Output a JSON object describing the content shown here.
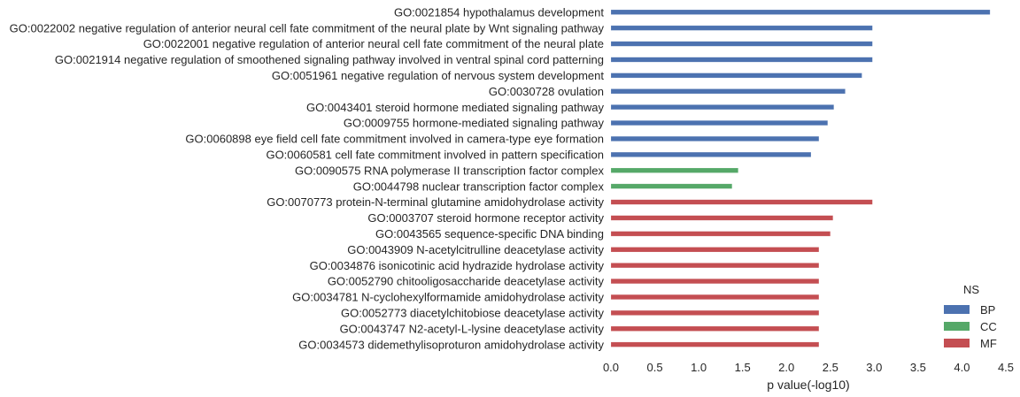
{
  "chart_data": {
    "type": "bar",
    "orientation": "horizontal",
    "xlabel": "p value(-log10)",
    "ylabel": "",
    "xlim": [
      0,
      4.5
    ],
    "xticks": [
      "0.0",
      "0.5",
      "1.0",
      "1.5",
      "2.0",
      "2.5",
      "3.0",
      "3.5",
      "4.0",
      "4.5"
    ],
    "grid": false,
    "legend": {
      "title": "NS",
      "placement": "lower-right",
      "entries": [
        {
          "name": "BP",
          "color": "#4c72b0"
        },
        {
          "name": "CC",
          "color": "#55a868"
        },
        {
          "name": "MF",
          "color": "#c44e52"
        }
      ]
    },
    "categories": [
      "GO:0021854 hypothalamus development",
      "GO:0022002 negative regulation of anterior neural cell fate commitment of the neural plate by Wnt signaling pathway",
      "GO:0022001 negative regulation of anterior neural cell fate commitment of the neural plate",
      "GO:0021914 negative regulation of smoothened signaling pathway involved in ventral spinal cord patterning",
      "GO:0051961 negative regulation of nervous system development",
      "GO:0030728 ovulation",
      "GO:0043401 steroid hormone mediated signaling pathway",
      "GO:0009755 hormone-mediated signaling pathway",
      "GO:0060898 eye field cell fate commitment involved in camera-type eye formation",
      "GO:0060581 cell fate commitment involved in pattern specification",
      "GO:0090575 RNA polymerase II transcription factor complex",
      "GO:0044798 nuclear transcription factor complex",
      "GO:0070773 protein-N-terminal glutamine amidohydrolase activity",
      "GO:0003707 steroid hormone receptor activity",
      "GO:0043565 sequence-specific DNA binding",
      "GO:0043909 N-acetylcitrulline deacetylase activity",
      "GO:0034876 isonicotinic acid hydrazide hydrolase activity",
      "GO:0052790 chitooligosaccharide deacetylase activity",
      "GO:0034781 N-cyclohexylformamide amidohydrolase activity",
      "GO:0052773 diacetylchitobiose deacetylase activity",
      "GO:0043747 N2-acetyl-L-lysine deacetylase activity",
      "GO:0034573 didemethylisoproturon amidohydrolase activity"
    ],
    "series": [
      {
        "name": "BP",
        "color": "#4c72b0",
        "values": [
          4.32,
          2.98,
          2.98,
          2.98,
          2.86,
          2.67,
          2.54,
          2.47,
          2.37,
          2.28,
          null,
          null,
          null,
          null,
          null,
          null,
          null,
          null,
          null,
          null,
          null,
          null
        ]
      },
      {
        "name": "CC",
        "color": "#55a868",
        "values": [
          null,
          null,
          null,
          null,
          null,
          null,
          null,
          null,
          null,
          null,
          1.45,
          1.38,
          null,
          null,
          null,
          null,
          null,
          null,
          null,
          null,
          null,
          null
        ]
      },
      {
        "name": "MF",
        "color": "#c44e52",
        "values": [
          null,
          null,
          null,
          null,
          null,
          null,
          null,
          null,
          null,
          null,
          null,
          null,
          2.98,
          2.53,
          2.5,
          2.37,
          2.37,
          2.37,
          2.37,
          2.37,
          2.37,
          2.37
        ]
      }
    ]
  }
}
